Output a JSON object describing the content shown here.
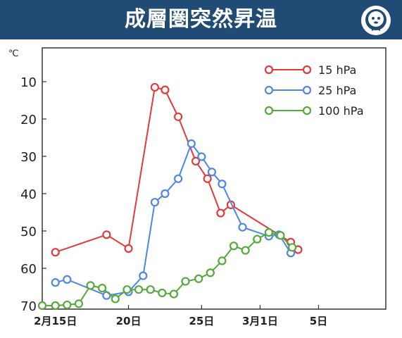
{
  "header": {
    "title": "成層圏突然昇温",
    "logo": "weather-mascot-icon",
    "bg_color": "#1f4b74"
  },
  "chart_data": {
    "type": "line",
    "title": "成層圏突然昇温",
    "ylabel": "℃",
    "y_inverted": true,
    "ylim": [
      70,
      0
    ],
    "y_ticks": [
      10,
      20,
      30,
      40,
      50,
      60,
      70
    ],
    "xlim": [
      -0.9,
      22.6
    ],
    "x_ticks": [
      {
        "label": "2月15日",
        "x": 0
      },
      {
        "label": "20日",
        "x": 5
      },
      {
        "label": "25日",
        "x": 10
      },
      {
        "label": "3月1日",
        "x": 14
      },
      {
        "label": "5日",
        "x": 18
      }
    ],
    "legend_position": "top-right",
    "series": [
      {
        "name": "15 hPa",
        "color": "#e03a3a",
        "points": [
          [
            0,
            55.7
          ],
          [
            3.5,
            51
          ],
          [
            5,
            54.7
          ],
          [
            6.8,
            11.5
          ],
          [
            7.5,
            12.2
          ],
          [
            8.4,
            19.4
          ],
          [
            9.6,
            31.3
          ],
          [
            10.4,
            36
          ],
          [
            11.3,
            45.2
          ],
          [
            12,
            43
          ],
          [
            16.1,
            53
          ],
          [
            16.6,
            55
          ]
        ]
      },
      {
        "name": "25 hPa",
        "color": "#4d86e8",
        "points": [
          [
            0,
            63.8
          ],
          [
            0.8,
            63
          ],
          [
            3.5,
            67.3
          ],
          [
            5,
            66.3
          ],
          [
            6,
            62
          ],
          [
            6.8,
            42.3
          ],
          [
            7.5,
            40
          ],
          [
            8.4,
            36
          ],
          [
            9.3,
            26.6
          ],
          [
            10,
            30.1
          ],
          [
            10.7,
            34.2
          ],
          [
            11.4,
            37.4
          ],
          [
            12.8,
            49
          ],
          [
            14.6,
            51.4
          ],
          [
            15.3,
            51
          ],
          [
            16.1,
            55.9
          ]
        ]
      },
      {
        "name": "100 hPa",
        "color": "#55a83a",
        "points": [
          [
            -0.9,
            70
          ],
          [
            0,
            70
          ],
          [
            0.8,
            69.8
          ],
          [
            1.6,
            69.5
          ],
          [
            2.4,
            64.6
          ],
          [
            3.2,
            65.3
          ],
          [
            4.1,
            68.2
          ],
          [
            4.9,
            65.7
          ],
          [
            5.7,
            65.7
          ],
          [
            6.5,
            65.7
          ],
          [
            7.3,
            66.6
          ],
          [
            8.1,
            66.9
          ],
          [
            8.9,
            63.5
          ],
          [
            9.8,
            62.8
          ],
          [
            10.6,
            61.2
          ],
          [
            11.4,
            58
          ],
          [
            12.2,
            54
          ],
          [
            13,
            55.2
          ],
          [
            13.8,
            52.2
          ],
          [
            14.6,
            50.4
          ],
          [
            15.4,
            51.2
          ],
          [
            16.2,
            54.4
          ]
        ]
      }
    ]
  }
}
